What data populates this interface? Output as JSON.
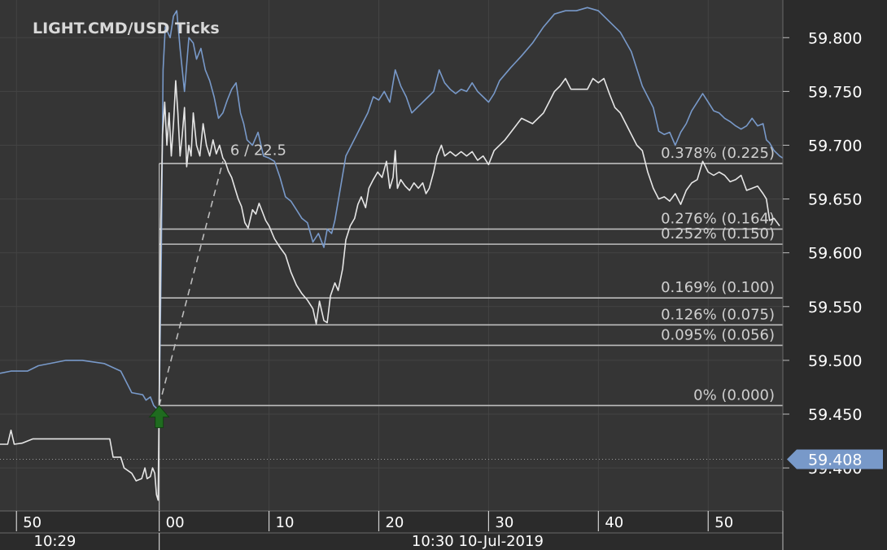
{
  "colors": {
    "background": "#2b2b2b",
    "plot_bg": "#353535",
    "grid": "#444444",
    "axis_text": "#ffffff",
    "title": "#d8d8d8",
    "bid_line": "#7899c9",
    "tick_line": "#e6e6e6",
    "fib_line": "#bdbdbd",
    "fib_label": "#cfcfcf",
    "last_price_bg": "#7899c9",
    "buy_arrow": "#1f6b1f"
  },
  "chart_data": {
    "type": "line",
    "title": "LIGHT.CMD/USD  Ticks",
    "ylim": [
      59.36,
      59.835
    ],
    "xlim": [
      -14.5,
      56.8
    ],
    "y_ticks": [
      "59.800",
      "59.750",
      "59.700",
      "59.650",
      "59.600",
      "59.550",
      "59.500",
      "59.450",
      "59.400"
    ],
    "y_tick_values": [
      59.8,
      59.75,
      59.7,
      59.65,
      59.6,
      59.55,
      59.5,
      59.45,
      59.4
    ],
    "x_ticks": [
      {
        "sec": -13,
        "label": "50"
      },
      {
        "sec": 0,
        "label": "00"
      },
      {
        "sec": 10,
        "label": "10"
      },
      {
        "sec": 20,
        "label": "20"
      },
      {
        "sec": 30,
        "label": "30"
      },
      {
        "sec": 40,
        "label": "40"
      },
      {
        "sec": 50,
        "label": "50"
      }
    ],
    "x_minor_ticks": [
      -13,
      0,
      10,
      20,
      30,
      40,
      50
    ],
    "time_labels": [
      {
        "sec": -9.5,
        "label": "10:29"
      },
      {
        "sec": 29,
        "label": "10:30 10-Jul-2019"
      }
    ],
    "time_separator_sec": [
      0
    ],
    "last_price": "59.408",
    "last_price_value": 59.408,
    "fib_levels": [
      {
        "value": 59.683,
        "label": "0.378% (0.225)"
      },
      {
        "value": 59.622,
        "label": "0.276% (0.164)"
      },
      {
        "value": 59.608,
        "label": "0.252% (0.150)"
      },
      {
        "value": 59.558,
        "label": "0.169% (0.100)"
      },
      {
        "value": 59.533,
        "label": "0.126% (0.075)"
      },
      {
        "value": 59.514,
        "label": "0.095% (0.056)"
      },
      {
        "value": 59.458,
        "label": "0% (0.000)"
      }
    ],
    "fib_start_sec": 0,
    "trend_annotation": "6 / 22.5",
    "trend_line": {
      "from": [
        0,
        59.458
      ],
      "to": [
        5.8,
        59.685
      ]
    },
    "buy_marker": {
      "x": 0,
      "y": 59.448
    },
    "series": [
      {
        "key": "bid",
        "color_key": "bid_line",
        "points": [
          [
            -14.5,
            59.488
          ],
          [
            -13.5,
            59.49
          ],
          [
            -12,
            59.49
          ],
          [
            -11,
            59.495
          ],
          [
            -10,
            59.497
          ],
          [
            -8.5,
            59.5
          ],
          [
            -7,
            59.5
          ],
          [
            -5,
            59.497
          ],
          [
            -3.5,
            59.49
          ],
          [
            -2.5,
            59.47
          ],
          [
            -1.5,
            59.468
          ],
          [
            -1.2,
            59.463
          ],
          [
            -0.8,
            59.466
          ],
          [
            -0.5,
            59.458
          ],
          [
            -0.2,
            59.455
          ],
          [
            0,
            59.455
          ],
          [
            0.2,
            59.6
          ],
          [
            0.35,
            59.77
          ],
          [
            0.55,
            59.81
          ],
          [
            1,
            59.8
          ],
          [
            1.3,
            59.82
          ],
          [
            1.6,
            59.825
          ],
          [
            1.9,
            59.79
          ],
          [
            2.3,
            59.75
          ],
          [
            2.7,
            59.8
          ],
          [
            3.1,
            59.795
          ],
          [
            3.4,
            59.78
          ],
          [
            3.8,
            59.79
          ],
          [
            4.2,
            59.77
          ],
          [
            4.6,
            59.76
          ],
          [
            5,
            59.745
          ],
          [
            5.4,
            59.725
          ],
          [
            5.8,
            59.73
          ],
          [
            6.2,
            59.742
          ],
          [
            6.6,
            59.752
          ],
          [
            7,
            59.758
          ],
          [
            7.4,
            59.73
          ],
          [
            7.7,
            59.72
          ],
          [
            8,
            59.705
          ],
          [
            8.5,
            59.7
          ],
          [
            9,
            59.712
          ],
          [
            9.5,
            59.69
          ],
          [
            10,
            59.688
          ],
          [
            10.5,
            59.685
          ],
          [
            11,
            59.67
          ],
          [
            11.5,
            59.652
          ],
          [
            12,
            59.648
          ],
          [
            12.5,
            59.64
          ],
          [
            13,
            59.632
          ],
          [
            13.5,
            59.628
          ],
          [
            14,
            59.61
          ],
          [
            14.5,
            59.618
          ],
          [
            15,
            59.605
          ],
          [
            15.3,
            59.622
          ],
          [
            15.7,
            59.618
          ],
          [
            16,
            59.63
          ],
          [
            16.5,
            59.66
          ],
          [
            17,
            59.69
          ],
          [
            17.5,
            59.7
          ],
          [
            18,
            59.71
          ],
          [
            18.5,
            59.72
          ],
          [
            19,
            59.73
          ],
          [
            19.5,
            59.745
          ],
          [
            20,
            59.742
          ],
          [
            20.5,
            59.75
          ],
          [
            21,
            59.74
          ],
          [
            21.5,
            59.77
          ],
          [
            22,
            59.755
          ],
          [
            22.5,
            59.745
          ],
          [
            23,
            59.73
          ],
          [
            23.5,
            59.735
          ],
          [
            24,
            59.74
          ],
          [
            24.5,
            59.745
          ],
          [
            25,
            59.75
          ],
          [
            25.5,
            59.77
          ],
          [
            26,
            59.758
          ],
          [
            26.5,
            59.752
          ],
          [
            27,
            59.748
          ],
          [
            27.5,
            59.752
          ],
          [
            28,
            59.75
          ],
          [
            28.5,
            59.758
          ],
          [
            29,
            59.75
          ],
          [
            29.5,
            59.745
          ],
          [
            30,
            59.74
          ],
          [
            30.5,
            59.748
          ],
          [
            31,
            59.76
          ],
          [
            32,
            59.772
          ],
          [
            33,
            59.783
          ],
          [
            34,
            59.795
          ],
          [
            35,
            59.81
          ],
          [
            36,
            59.822
          ],
          [
            37,
            59.825
          ],
          [
            38,
            59.825
          ],
          [
            39,
            59.828
          ],
          [
            40,
            59.825
          ],
          [
            41,
            59.815
          ],
          [
            42,
            59.805
          ],
          [
            43,
            59.787
          ],
          [
            44,
            59.755
          ],
          [
            45,
            59.735
          ],
          [
            45.5,
            59.713
          ],
          [
            46,
            59.71
          ],
          [
            46.5,
            59.712
          ],
          [
            47,
            59.7
          ],
          [
            47.5,
            59.712
          ],
          [
            48,
            59.72
          ],
          [
            48.5,
            59.732
          ],
          [
            49,
            59.74
          ],
          [
            49.5,
            59.748
          ],
          [
            50,
            59.74
          ],
          [
            50.5,
            59.732
          ],
          [
            51,
            59.73
          ],
          [
            51.5,
            59.725
          ],
          [
            52,
            59.722
          ],
          [
            52.5,
            59.718
          ],
          [
            53,
            59.715
          ],
          [
            53.5,
            59.718
          ],
          [
            54,
            59.725
          ],
          [
            54.5,
            59.718
          ],
          [
            55,
            59.72
          ],
          [
            55.3,
            59.705
          ],
          [
            55.6,
            59.702
          ],
          [
            56,
            59.695
          ],
          [
            56.5,
            59.69
          ],
          [
            56.8,
            59.688
          ]
        ]
      },
      {
        "key": "ticks",
        "color_key": "tick_line",
        "points": [
          [
            -14.5,
            59.422
          ],
          [
            -13.8,
            59.422
          ],
          [
            -13.5,
            59.435
          ],
          [
            -13.2,
            59.422
          ],
          [
            -12.5,
            59.423
          ],
          [
            -11.5,
            59.427
          ],
          [
            -10.5,
            59.427
          ],
          [
            -4.5,
            59.427
          ],
          [
            -4.2,
            59.41
          ],
          [
            -3.5,
            59.41
          ],
          [
            -3.2,
            59.4
          ],
          [
            -2.5,
            59.395
          ],
          [
            -2.1,
            59.388
          ],
          [
            -1.6,
            59.39
          ],
          [
            -1.3,
            59.4
          ],
          [
            -1.1,
            59.39
          ],
          [
            -0.8,
            59.392
          ],
          [
            -0.6,
            59.4
          ],
          [
            -0.4,
            59.395
          ],
          [
            -0.25,
            59.375
          ],
          [
            -0.1,
            59.37
          ],
          [
            0,
            59.462
          ],
          [
            0.15,
            59.63
          ],
          [
            0.3,
            59.71
          ],
          [
            0.5,
            59.74
          ],
          [
            0.7,
            59.7
          ],
          [
            0.9,
            59.73
          ],
          [
            1.1,
            59.69
          ],
          [
            1.3,
            59.72
          ],
          [
            1.5,
            59.76
          ],
          [
            1.7,
            59.73
          ],
          [
            1.9,
            59.69
          ],
          [
            2.1,
            59.71
          ],
          [
            2.3,
            59.735
          ],
          [
            2.5,
            59.68
          ],
          [
            2.7,
            59.7
          ],
          [
            2.9,
            59.69
          ],
          [
            3.1,
            59.73
          ],
          [
            3.4,
            59.7
          ],
          [
            3.7,
            59.69
          ],
          [
            4,
            59.72
          ],
          [
            4.3,
            59.7
          ],
          [
            4.6,
            59.69
          ],
          [
            4.9,
            59.705
          ],
          [
            5.2,
            59.692
          ],
          [
            5.5,
            59.7
          ],
          [
            5.8,
            59.688
          ],
          [
            6,
            59.685
          ],
          [
            6.3,
            59.676
          ],
          [
            6.6,
            59.67
          ],
          [
            6.9,
            59.66
          ],
          [
            7.2,
            59.65
          ],
          [
            7.5,
            59.643
          ],
          [
            7.8,
            59.628
          ],
          [
            8.1,
            59.623
          ],
          [
            8.5,
            59.64
          ],
          [
            8.8,
            59.636
          ],
          [
            9.1,
            59.646
          ],
          [
            9.4,
            59.638
          ],
          [
            9.7,
            59.63
          ],
          [
            10,
            59.625
          ],
          [
            10.5,
            59.613
          ],
          [
            11,
            59.605
          ],
          [
            11.5,
            59.598
          ],
          [
            12,
            59.582
          ],
          [
            12.5,
            59.57
          ],
          [
            13,
            59.562
          ],
          [
            13.5,
            59.556
          ],
          [
            14,
            59.548
          ],
          [
            14.3,
            59.534
          ],
          [
            14.6,
            59.555
          ],
          [
            15,
            59.537
          ],
          [
            15.3,
            59.535
          ],
          [
            15.6,
            59.56
          ],
          [
            16,
            59.572
          ],
          [
            16.3,
            59.565
          ],
          [
            16.7,
            59.585
          ],
          [
            17,
            59.612
          ],
          [
            17.4,
            59.625
          ],
          [
            17.8,
            59.632
          ],
          [
            18.1,
            59.645
          ],
          [
            18.4,
            59.652
          ],
          [
            18.8,
            59.642
          ],
          [
            19.1,
            59.66
          ],
          [
            19.5,
            59.668
          ],
          [
            19.9,
            59.675
          ],
          [
            20.3,
            59.67
          ],
          [
            20.7,
            59.685
          ],
          [
            21,
            59.66
          ],
          [
            21.3,
            59.67
          ],
          [
            21.5,
            59.695
          ],
          [
            21.7,
            59.66
          ],
          [
            22,
            59.668
          ],
          [
            22.4,
            59.662
          ],
          [
            22.8,
            59.658
          ],
          [
            23.2,
            59.665
          ],
          [
            23.6,
            59.66
          ],
          [
            24,
            59.665
          ],
          [
            24.3,
            59.655
          ],
          [
            24.6,
            59.66
          ],
          [
            25,
            59.675
          ],
          [
            25.3,
            59.69
          ],
          [
            25.7,
            59.7
          ],
          [
            26,
            59.69
          ],
          [
            26.5,
            59.694
          ],
          [
            27,
            59.69
          ],
          [
            27.5,
            59.694
          ],
          [
            28,
            59.69
          ],
          [
            28.5,
            59.694
          ],
          [
            29,
            59.686
          ],
          [
            29.5,
            59.69
          ],
          [
            30,
            59.682
          ],
          [
            30.5,
            59.695
          ],
          [
            31.5,
            59.705
          ],
          [
            33,
            59.725
          ],
          [
            34,
            59.72
          ],
          [
            35,
            59.73
          ],
          [
            36,
            59.75
          ],
          [
            36.5,
            59.755
          ],
          [
            37,
            59.762
          ],
          [
            37.5,
            59.752
          ],
          [
            38,
            59.752
          ],
          [
            39,
            59.752
          ],
          [
            39.5,
            59.762
          ],
          [
            40,
            59.758
          ],
          [
            40.5,
            59.762
          ],
          [
            41,
            59.748
          ],
          [
            41.5,
            59.735
          ],
          [
            42,
            59.73
          ],
          [
            43,
            59.71
          ],
          [
            43.5,
            59.7
          ],
          [
            44,
            59.695
          ],
          [
            44.5,
            59.675
          ],
          [
            45,
            59.66
          ],
          [
            45.5,
            59.65
          ],
          [
            46,
            59.652
          ],
          [
            46.5,
            59.648
          ],
          [
            47,
            59.655
          ],
          [
            47.5,
            59.645
          ],
          [
            48,
            59.658
          ],
          [
            48.5,
            59.665
          ],
          [
            49,
            59.668
          ],
          [
            49.5,
            59.685
          ],
          [
            50,
            59.675
          ],
          [
            50.5,
            59.672
          ],
          [
            51,
            59.675
          ],
          [
            51.5,
            59.672
          ],
          [
            52,
            59.666
          ],
          [
            52.5,
            59.668
          ],
          [
            53,
            59.672
          ],
          [
            53.5,
            59.658
          ],
          [
            54,
            59.66
          ],
          [
            54.5,
            59.662
          ],
          [
            55,
            59.655
          ],
          [
            55.3,
            59.65
          ],
          [
            55.6,
            59.63
          ],
          [
            56,
            59.632
          ],
          [
            56.5,
            59.625
          ]
        ]
      }
    ]
  }
}
